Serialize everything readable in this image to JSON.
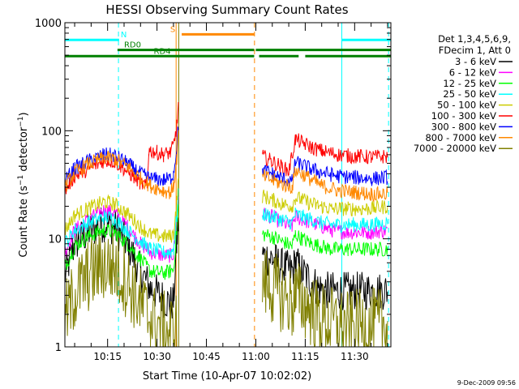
{
  "chart_data": {
    "type": "line",
    "title": "HESSI Observing Summary Count Rates",
    "xlabel": "Start Time (10-Apr-07 10:02:02)",
    "ylabel": "Count Rate (s⁻¹ detector⁻¹)",
    "ylabel_main": "Count Rate (s",
    "ylabel_sup1": "−1",
    "ylabel_mid": " detector",
    "ylabel_sup2": "−1",
    "ylabel_end": ")",
    "x_axis": {
      "start": "10:02:02",
      "end": "11:41",
      "start_min": 2.03,
      "end_min": 101,
      "ticks": [
        {
          "v": 15,
          "label": "10:15"
        },
        {
          "v": 30,
          "label": "10:30"
        },
        {
          "v": 45,
          "label": "10:45"
        },
        {
          "v": 60,
          "label": "11:00"
        },
        {
          "v": 75,
          "label": "11:15"
        },
        {
          "v": 90,
          "label": "11:30"
        }
      ]
    },
    "y_axis": {
      "scale": "log",
      "ylim": [
        1,
        1000
      ],
      "ticks": [
        {
          "v": 1,
          "label": "1"
        },
        {
          "v": 10,
          "label": "10"
        },
        {
          "v": 100,
          "label": "100"
        },
        {
          "v": 1000,
          "label": "1000"
        }
      ]
    },
    "legend_header": [
      "Det 1,3,4,5,6,9,",
      "FDecim 1, Att 0"
    ],
    "series": [
      {
        "name": "3 - 6 keV",
        "color": "#000000",
        "points": [
          [
            2,
            4.5
          ],
          [
            5,
            9
          ],
          [
            9,
            11.5
          ],
          [
            14,
            14
          ],
          [
            17,
            13
          ],
          [
            21,
            9
          ],
          [
            25,
            5
          ],
          [
            28,
            3.5
          ],
          [
            32,
            2.8
          ],
          [
            34,
            2.5
          ],
          [
            35,
            2.6
          ],
          [
            36,
            9
          ],
          [
            36.5,
            14
          ],
          [
            62,
            7
          ],
          [
            65,
            6.5
          ],
          [
            68,
            5.5
          ],
          [
            71,
            5
          ],
          [
            72,
            6
          ],
          [
            74,
            5
          ],
          [
            77,
            4
          ],
          [
            79,
            3.5
          ],
          [
            82,
            3.3
          ],
          [
            88,
            3.3
          ],
          [
            95,
            3.3
          ],
          [
            100,
            3.3
          ]
        ]
      },
      {
        "name": "6 - 12 keV",
        "color": "#ff00ff",
        "points": [
          [
            2,
            7.5
          ],
          [
            5,
            12
          ],
          [
            9,
            15
          ],
          [
            14,
            18.5
          ],
          [
            17,
            17.5
          ],
          [
            21,
            13
          ],
          [
            25,
            9
          ],
          [
            28,
            7.5
          ],
          [
            32,
            7
          ],
          [
            34,
            7
          ],
          [
            35,
            7.2
          ],
          [
            36,
            15
          ],
          [
            36.5,
            25
          ],
          [
            62,
            17
          ],
          [
            65,
            16
          ],
          [
            68,
            14
          ],
          [
            71,
            13
          ],
          [
            72,
            16
          ],
          [
            74,
            15
          ],
          [
            77,
            14
          ],
          [
            80,
            13
          ],
          [
            83,
            12
          ],
          [
            88,
            11.5
          ],
          [
            95,
            11.5
          ],
          [
            100,
            12
          ]
        ]
      },
      {
        "name": "12 - 25 keV",
        "color": "#00ff00",
        "points": [
          [
            2,
            5.5
          ],
          [
            5,
            8.5
          ],
          [
            9,
            10.5
          ],
          [
            14,
            12
          ],
          [
            17,
            11.5
          ],
          [
            21,
            9
          ],
          [
            25,
            6.5
          ],
          [
            28,
            5
          ],
          [
            32,
            4.8
          ],
          [
            34,
            5
          ],
          [
            35,
            5.2
          ],
          [
            36,
            12
          ],
          [
            36.5,
            20
          ],
          [
            62,
            11
          ],
          [
            65,
            10.5
          ],
          [
            68,
            9.5
          ],
          [
            71,
            8.5
          ],
          [
            72,
            11
          ],
          [
            74,
            10
          ],
          [
            77,
            9
          ],
          [
            80,
            8.5
          ],
          [
            83,
            8
          ],
          [
            88,
            8
          ],
          [
            95,
            8
          ],
          [
            100,
            8
          ]
        ]
      },
      {
        "name": "25 - 50 keV",
        "color": "#00ffff",
        "points": [
          [
            2,
            9
          ],
          [
            5,
            12
          ],
          [
            9,
            14
          ],
          [
            14,
            16
          ],
          [
            17,
            15.5
          ],
          [
            21,
            12
          ],
          [
            25,
            9.5
          ],
          [
            28,
            8
          ],
          [
            32,
            7.5
          ],
          [
            34,
            7.5
          ],
          [
            35,
            8
          ],
          [
            36,
            16
          ],
          [
            36.5,
            25
          ],
          [
            62,
            17
          ],
          [
            65,
            16
          ],
          [
            68,
            15
          ],
          [
            71,
            14
          ],
          [
            72,
            17
          ],
          [
            74,
            16
          ],
          [
            77,
            15
          ],
          [
            80,
            14
          ],
          [
            83,
            13.5
          ],
          [
            88,
            13.5
          ],
          [
            95,
            13.5
          ],
          [
            100,
            14
          ]
        ]
      },
      {
        "name": "50 - 100 keV",
        "color": "#cccc00",
        "points": [
          [
            2,
            12
          ],
          [
            5,
            16.5
          ],
          [
            9,
            19
          ],
          [
            14,
            22
          ],
          [
            17,
            21
          ],
          [
            21,
            17
          ],
          [
            25,
            13
          ],
          [
            28,
            11
          ],
          [
            32,
            10.5
          ],
          [
            34,
            10.5
          ],
          [
            35,
            11
          ],
          [
            36,
            22
          ],
          [
            36.5,
            35
          ],
          [
            62,
            25
          ],
          [
            65,
            23
          ],
          [
            68,
            21
          ],
          [
            71,
            20
          ],
          [
            72,
            24
          ],
          [
            74,
            23
          ],
          [
            77,
            21
          ],
          [
            80,
            20
          ],
          [
            83,
            19
          ],
          [
            88,
            19
          ],
          [
            95,
            19
          ],
          [
            100,
            20
          ]
        ]
      },
      {
        "name": "100 - 300 keV",
        "color": "#ff0000",
        "points": [
          [
            2,
            28
          ],
          [
            5,
            38
          ],
          [
            9,
            44
          ],
          [
            14,
            53
          ],
          [
            17,
            52
          ],
          [
            21,
            42
          ],
          [
            25,
            33
          ],
          [
            27,
            30
          ],
          [
            27.5,
            66
          ],
          [
            30,
            63
          ],
          [
            32,
            60
          ],
          [
            34,
            63
          ],
          [
            35,
            72
          ],
          [
            36,
            110
          ],
          [
            36.5,
            175
          ],
          [
            62,
            58
          ],
          [
            65,
            52
          ],
          [
            68,
            46
          ],
          [
            70,
            42
          ],
          [
            72,
            83
          ],
          [
            74,
            78
          ],
          [
            77,
            70
          ],
          [
            80,
            65
          ],
          [
            85,
            60
          ],
          [
            90,
            58
          ],
          [
            95,
            57
          ],
          [
            100,
            58
          ]
        ]
      },
      {
        "name": "300 - 800 keV",
        "color": "#0000ff",
        "points": [
          [
            2,
            34
          ],
          [
            5,
            45
          ],
          [
            9,
            52
          ],
          [
            14,
            60
          ],
          [
            17,
            59
          ],
          [
            21,
            50
          ],
          [
            25,
            40
          ],
          [
            28,
            36
          ],
          [
            32,
            35
          ],
          [
            34,
            36
          ],
          [
            35,
            40
          ],
          [
            36,
            70
          ],
          [
            36.5,
            110
          ],
          [
            62,
            43
          ],
          [
            65,
            40
          ],
          [
            68,
            36
          ],
          [
            71,
            34
          ],
          [
            72,
            51
          ],
          [
            74,
            48
          ],
          [
            77,
            44
          ],
          [
            80,
            41
          ],
          [
            85,
            38
          ],
          [
            90,
            37
          ],
          [
            95,
            36
          ],
          [
            100,
            37
          ]
        ]
      },
      {
        "name": "800 - 7000 keV",
        "color": "#ff8800",
        "points": [
          [
            2,
            30
          ],
          [
            5,
            41
          ],
          [
            9,
            49
          ],
          [
            14,
            56
          ],
          [
            17,
            55
          ],
          [
            21,
            47
          ],
          [
            25,
            36
          ],
          [
            28,
            31
          ],
          [
            32,
            28
          ],
          [
            34,
            27
          ],
          [
            35,
            30
          ],
          [
            36,
            55
          ],
          [
            36.5,
            90
          ],
          [
            62,
            38
          ],
          [
            65,
            35
          ],
          [
            68,
            32
          ],
          [
            71,
            30
          ],
          [
            72,
            43
          ],
          [
            74,
            40
          ],
          [
            77,
            35
          ],
          [
            80,
            31
          ],
          [
            85,
            28
          ],
          [
            90,
            27
          ],
          [
            95,
            26
          ],
          [
            100,
            26
          ]
        ]
      },
      {
        "name": "7000 - 20000 keV",
        "color": "#808000",
        "points": [
          [
            2,
            1.8
          ],
          [
            5,
            3
          ],
          [
            9,
            4.5
          ],
          [
            14,
            5.8
          ],
          [
            17,
            5.5
          ],
          [
            21,
            4
          ],
          [
            25,
            2.5
          ],
          [
            28,
            1.8
          ],
          [
            32,
            1.5
          ],
          [
            34,
            1.4
          ],
          [
            36,
            1.5
          ],
          [
            62,
            4
          ],
          [
            65,
            3.5
          ],
          [
            68,
            3
          ],
          [
            71,
            2.5
          ],
          [
            72,
            3
          ],
          [
            75,
            2.5
          ],
          [
            78,
            2
          ],
          [
            82,
            1.7
          ],
          [
            88,
            1.5
          ],
          [
            95,
            1.6
          ],
          [
            100,
            1.6
          ]
        ]
      }
    ],
    "flags": [
      {
        "label": "N",
        "color": "#00ffff",
        "y": 693,
        "segments": [
          [
            2,
            18.5
          ],
          [
            86,
            101
          ]
        ],
        "label_x": 19
      },
      {
        "label": "S",
        "color": "#ff8800",
        "y": 780,
        "segments": [
          [
            37.5,
            59.5
          ]
        ],
        "label_x": 34
      },
      {
        "label": "RD0",
        "color": "#008000",
        "y": 560,
        "segments": [
          [
            18,
            59.5
          ],
          [
            60,
            101
          ]
        ],
        "label_x": 20
      },
      {
        "label": "RD4",
        "color": "#008000",
        "y": 490,
        "segments": [
          [
            2,
            59.5
          ],
          [
            61,
            73
          ],
          [
            75,
            101
          ]
        ],
        "label_x": 29
      }
    ],
    "vlines": [
      {
        "x": 2.03,
        "color": "#00ffff",
        "style": "dashed"
      },
      {
        "x": 18.3,
        "color": "#00ffff",
        "style": "dashed"
      },
      {
        "x": 35.8,
        "color": "#ff8800",
        "style": "solid"
      },
      {
        "x": 36.6,
        "color": "#808000",
        "style": "solid"
      },
      {
        "x": 59.6,
        "color": "#ff8800",
        "style": "dashed"
      },
      {
        "x": 86.1,
        "color": "#00ffff",
        "style": "solid"
      },
      {
        "x": 100.3,
        "color": "#00ffff",
        "style": "dashed"
      }
    ],
    "gaps": [
      [
        36.7,
        61.5
      ]
    ],
    "footer": "9-Dec-2009 09:56"
  }
}
